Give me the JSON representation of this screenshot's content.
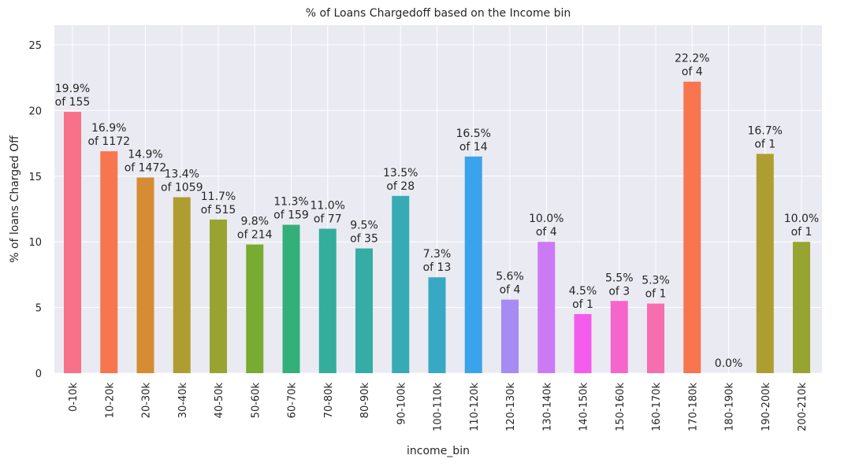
{
  "chart_data": {
    "type": "bar",
    "title": "% of Loans Chargedoff based on the Income bin",
    "xlabel": "income_bin",
    "ylabel": "% of loans Charged Off",
    "ylim": [
      0,
      26.5
    ],
    "yticks": [
      0,
      5,
      10,
      15,
      20,
      25
    ],
    "grid": true,
    "categories": [
      "0-10k",
      "10-20k",
      "20-30k",
      "30-40k",
      "40-50k",
      "50-60k",
      "60-70k",
      "70-80k",
      "80-90k",
      "90-100k",
      "100-110k",
      "110-120k",
      "120-130k",
      "130-140k",
      "140-150k",
      "150-160k",
      "160-170k",
      "170-180k",
      "180-190k",
      "190-200k",
      "200-210k"
    ],
    "values": [
      19.9,
      16.9,
      14.9,
      13.4,
      11.7,
      9.8,
      11.3,
      11.0,
      9.5,
      13.5,
      7.3,
      16.5,
      5.6,
      10.0,
      4.5,
      5.5,
      5.3,
      22.2,
      0.0,
      16.7,
      10.0
    ],
    "pct_labels": [
      "19.9%",
      "16.9%",
      "14.9%",
      "13.4%",
      "11.7%",
      "9.8%",
      "11.3%",
      "11.0%",
      "9.5%",
      "13.5%",
      "7.3%",
      "16.5%",
      "5.6%",
      "10.0%",
      "4.5%",
      "5.5%",
      "5.3%",
      "22.2%",
      "0.0%",
      "16.7%",
      "10.0%"
    ],
    "count_labels": [
      "of 155",
      "of 1172",
      "of 1472",
      "of 1059",
      "of 515",
      "of 214",
      "of 159",
      "of 77",
      "of 35",
      "of 28",
      "of 13",
      "of 14",
      "of 4",
      "of 4",
      "of 1",
      "of 3",
      "of 1",
      "of 4",
      "",
      "of 1",
      "of 1"
    ],
    "colors": [
      "#f77189",
      "#f7754f",
      "#d58c32",
      "#ae9d31",
      "#97a431",
      "#77ab31",
      "#33b07a",
      "#35ad9c",
      "#36ada4",
      "#37abb4",
      "#38a9c5",
      "#3ba3ec",
      "#a48cf4",
      "#cc7af4",
      "#f45deb",
      "#f565cc",
      "#f66ead",
      "#f7754f",
      "#d58c32",
      "#ae9d31",
      "#97a431"
    ]
  }
}
